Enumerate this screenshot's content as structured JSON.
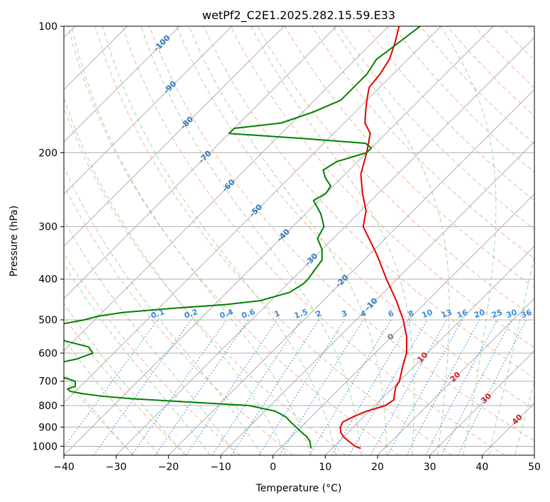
{
  "chart_data": {
    "type": "line",
    "title": "wetPf2_C2E1.2025.282.15.59.E33",
    "xlabel": "Temperature (°C)",
    "ylabel": "Pressure (hPa)",
    "xlim": [
      -40,
      50
    ],
    "ylim": [
      1050,
      100
    ],
    "y_scale": "log",
    "skew": true,
    "grid": true,
    "legend": "none",
    "x_ticks": [
      "−40",
      "−30",
      "−20",
      "−10",
      "0",
      "10",
      "20",
      "30",
      "40",
      "50"
    ],
    "y_ticks": [
      "100",
      "200",
      "300",
      "400",
      "500",
      "600",
      "700",
      "800",
      "900",
      "1000"
    ],
    "colors": {
      "temperature": "#e60000",
      "dewpoint": "#008000",
      "isotherm": "#b0b0b0",
      "dry_adiabat": "#f4a582",
      "moist_adiabat": "#9ccf9c",
      "mixing_ratio": "#3a8dd8",
      "isotherm_label": "#2b78c2",
      "mixing_label": "#3a8dd8",
      "warm_label": "#cc2222",
      "zero_label": "#777777"
    },
    "series": [
      {
        "key": "temperature",
        "pressure": [
          1012,
          1000,
          975,
          950,
          925,
          900,
          875,
          850,
          825,
          800,
          775,
          750,
          725,
          700,
          650,
          600,
          550,
          500,
          450,
          400,
          350,
          300,
          275,
          250,
          225,
          200,
          180,
          170,
          160,
          150,
          140,
          130,
          120,
          110,
          100
        ],
        "values": [
          15.5,
          14.0,
          12.0,
          10.0,
          8.5,
          7.5,
          7.0,
          8.0,
          9.5,
          12.0,
          12.5,
          11.5,
          10.5,
          10.0,
          8.0,
          6.0,
          3.0,
          -1.0,
          -6.0,
          -12.0,
          -18.5,
          -26.5,
          -29.0,
          -33.0,
          -37.0,
          -40.0,
          -43.0,
          -46.0,
          -48.0,
          -50.0,
          -52.0,
          -52.5,
          -53.5,
          -55.5,
          -58.0
        ]
      },
      {
        "key": "dewpoint",
        "pressure": [
          1012,
          1000,
          975,
          950,
          925,
          900,
          875,
          850,
          825,
          800,
          790,
          780,
          770,
          760,
          750,
          740,
          730,
          720,
          700,
          680,
          660,
          640,
          620,
          600,
          580,
          560,
          540,
          520,
          500,
          490,
          480,
          470,
          460,
          450,
          430,
          410,
          400,
          380,
          360,
          340,
          320,
          300,
          280,
          260,
          250,
          240,
          230,
          220,
          210,
          200,
          195,
          190,
          185,
          180,
          175,
          170,
          160,
          150,
          140,
          130,
          120,
          110,
          100
        ],
        "values": [
          6.0,
          5.5,
          4.5,
          3.0,
          1.0,
          -1.0,
          -3.0,
          -5.0,
          -8.0,
          -14.0,
          -22.0,
          -30.0,
          -38.0,
          -44.0,
          -48.0,
          -51.0,
          -52.0,
          -51.0,
          -52.0,
          -56.0,
          -62.0,
          -60.0,
          -56.0,
          -54.0,
          -56.0,
          -62.0,
          -66.0,
          -68.0,
          -62.0,
          -60.0,
          -56.0,
          -48.0,
          -38.0,
          -32.0,
          -28.0,
          -27.0,
          -27.0,
          -27.5,
          -28.0,
          -30.0,
          -33.0,
          -34.0,
          -37.0,
          -41.0,
          -40.0,
          -40.5,
          -43.0,
          -45.0,
          -44.0,
          -40.0,
          -40.0,
          -42.0,
          -55.0,
          -70.0,
          -70.0,
          -62.0,
          -58.0,
          -55.0,
          -55.0,
          -55.0,
          -56.0,
          -55.0,
          -54.0
        ]
      }
    ],
    "isotherm_labels": [
      "-100",
      "-90",
      "-80",
      "-70",
      "-60",
      "-50",
      "-40",
      "-30",
      "-20",
      "-10",
      "0",
      "10",
      "20",
      "30",
      "40"
    ],
    "mixing_ratio_labels": [
      "0.1",
      "0.2",
      "0.4",
      "0.6",
      "1",
      "1.5",
      "2",
      "3",
      "4",
      "6",
      "8",
      "10",
      "13",
      "16",
      "20",
      "25",
      "30",
      "36"
    ]
  }
}
